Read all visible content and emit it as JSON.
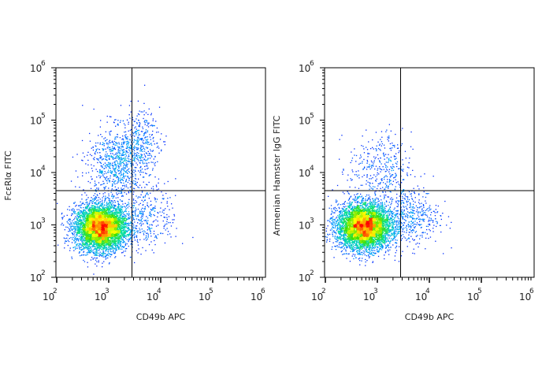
{
  "chart_data": [
    {
      "type": "scatter",
      "subtype": "flow-cytometry density dot plot",
      "xlabel": "CD49b APC",
      "ylabel": "FcεRIα FITC",
      "xscale": "log",
      "yscale": "log",
      "xlim": [
        100,
        1000000
      ],
      "ylim": [
        100,
        1000000
      ],
      "x_ticks": [
        "2",
        "3",
        "4",
        "5",
        "6"
      ],
      "y_ticks": [
        "2",
        "3",
        "4",
        "5",
        "6"
      ],
      "tick_base": "10",
      "quadrant_gate": {
        "x": 2800,
        "y": 4500
      },
      "populations": [
        {
          "center": [
            700,
            900
          ],
          "log_sd": [
            0.25,
            0.22
          ],
          "events": 5200
        },
        {
          "center": [
            1400,
            15000
          ],
          "log_sd": [
            0.28,
            0.35
          ],
          "events": 800
        },
        {
          "center": [
            4000,
            40000
          ],
          "log_sd": [
            0.18,
            0.3
          ],
          "events": 300
        },
        {
          "center": [
            5000,
            1500
          ],
          "log_sd": [
            0.3,
            0.3
          ],
          "events": 350
        }
      ]
    },
    {
      "type": "scatter",
      "subtype": "flow-cytometry density dot plot",
      "xlabel": "CD49b APC",
      "ylabel": "Armenian Hamster IgG FITC",
      "xscale": "log",
      "yscale": "log",
      "xlim": [
        100,
        1000000
      ],
      "ylim": [
        100,
        1000000
      ],
      "x_ticks": [
        "2",
        "3",
        "4",
        "5",
        "6"
      ],
      "y_ticks": [
        "2",
        "3",
        "4",
        "5",
        "6"
      ],
      "tick_base": "10",
      "quadrant_gate": {
        "x": 2800,
        "y": 4500
      },
      "populations": [
        {
          "center": [
            550,
            950
          ],
          "log_sd": [
            0.26,
            0.22
          ],
          "events": 5200
        },
        {
          "center": [
            1100,
            12000
          ],
          "log_sd": [
            0.3,
            0.35
          ],
          "events": 350
        },
        {
          "center": [
            4200,
            1500
          ],
          "log_sd": [
            0.28,
            0.28
          ],
          "events": 450
        }
      ]
    }
  ],
  "colors": {
    "density_ramp": [
      "#0000ff",
      "#00a0ff",
      "#00e0a0",
      "#40e000",
      "#ffff00",
      "#ff8000",
      "#ff0000"
    ],
    "axis": "#000000"
  }
}
